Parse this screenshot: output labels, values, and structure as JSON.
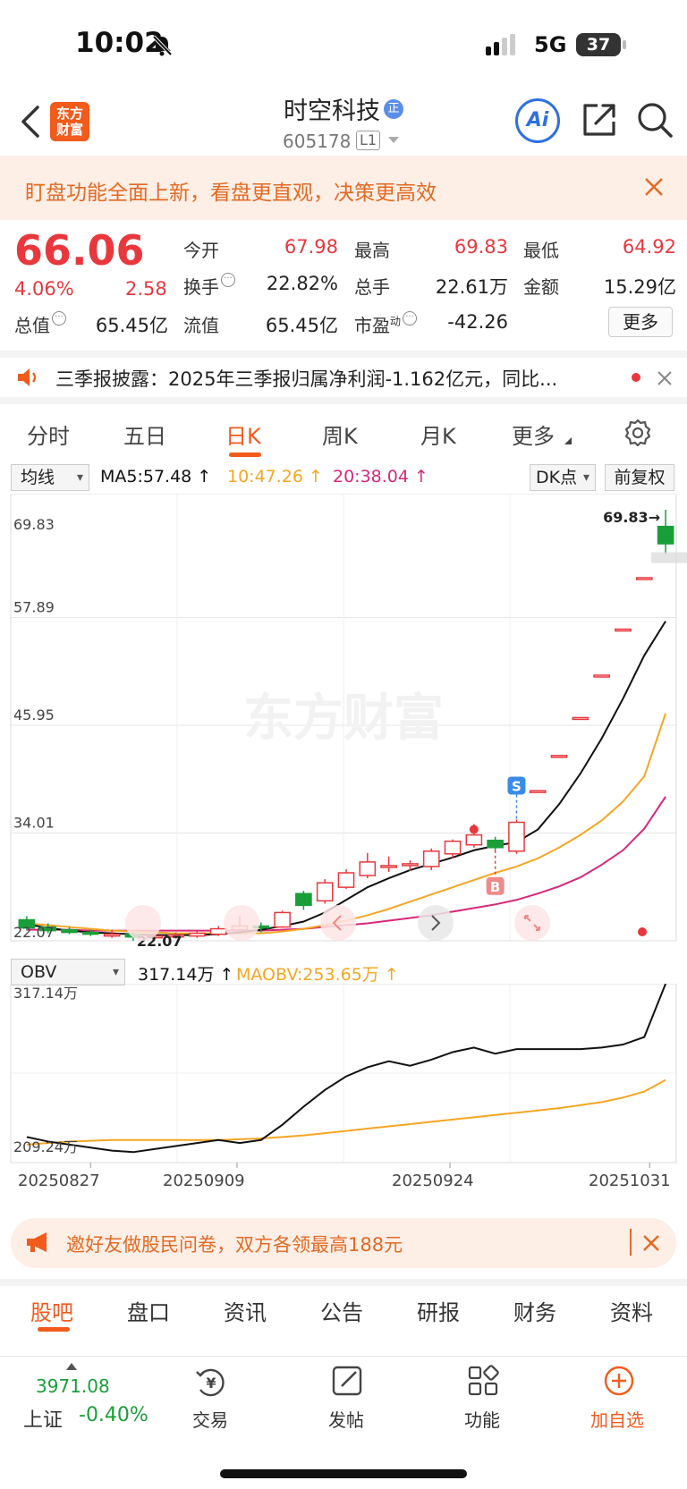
{
  "status_bar": {
    "time": "10:02",
    "network": "5G",
    "battery": "37"
  },
  "header": {
    "logo_line1": "东方",
    "logo_line2": "财富",
    "stock_name": "时空科技",
    "stock_badge": "正",
    "stock_code": "605178",
    "level": "L1",
    "ai_label": "Ai"
  },
  "banner": {
    "text": "盯盘功能全面上新，看盘更直观，决策更高效"
  },
  "quote": {
    "price": "66.06",
    "change_pct": "4.06%",
    "change": "2.58",
    "open_label": "今开",
    "open": "67.98",
    "high_label": "最高",
    "high": "69.83",
    "low_label": "最低",
    "low": "64.92",
    "turnover_label": "换手",
    "turnover": "22.82%",
    "volume_label": "总手",
    "volume": "22.61万",
    "amount_label": "金额",
    "amount": "15.29亿",
    "mcap_label": "总值",
    "mcap": "65.45亿",
    "float_label": "流值",
    "float": "65.45亿",
    "pe_label": "市盈",
    "pe_sup": "动",
    "pe": "-42.26",
    "more": "更多"
  },
  "ticker": {
    "text": "三季报披露：2025年三季报归属净利润-1.162亿元，同比..."
  },
  "period_tabs": [
    "分时",
    "五日",
    "日K",
    "周K",
    "月K",
    "更多"
  ],
  "indicators": {
    "main_select": "均线",
    "ma5": "MA5:57.48",
    "ma10": "10:47.26",
    "ma20": "20:38.04",
    "dk": "DK点",
    "fq": "前复权",
    "sub_select": "OBV",
    "obv": "317.14万",
    "maobv": "MAOBV:253.65万"
  },
  "chart_data": {
    "type": "candlestick",
    "y_ticks": [
      "69.83",
      "57.89",
      "45.95",
      "34.01",
      "22.07"
    ],
    "ylim": [
      22.07,
      69.83
    ],
    "high_marker": "69.83→",
    "low_marker": "22.07",
    "signal_labels": [
      "S",
      "B"
    ],
    "watermark": "东方财富",
    "candles": [
      {
        "o": 24.4,
        "c": 23.5,
        "h": 24.8,
        "l": 23.2
      },
      {
        "o": 23.6,
        "c": 23.2,
        "h": 24.0,
        "l": 22.9
      },
      {
        "o": 23.3,
        "c": 23.0,
        "h": 23.6,
        "l": 22.8
      },
      {
        "o": 23.0,
        "c": 22.9,
        "h": 23.3,
        "l": 22.6
      },
      {
        "o": 22.8,
        "c": 22.8,
        "h": 23.3,
        "l": 22.4
      },
      {
        "o": 22.8,
        "c": 22.5,
        "h": 23.0,
        "l": 22.07
      },
      {
        "o": 22.6,
        "c": 22.6,
        "h": 23.0,
        "l": 22.3
      },
      {
        "o": 22.6,
        "c": 22.7,
        "h": 23.0,
        "l": 22.3
      },
      {
        "o": 22.6,
        "c": 22.9,
        "h": 23.2,
        "l": 22.4
      },
      {
        "o": 22.8,
        "c": 23.4,
        "h": 23.7,
        "l": 22.6
      },
      {
        "o": 23.3,
        "c": 23.7,
        "h": 24.8,
        "l": 23.1
      },
      {
        "o": 23.7,
        "c": 23.6,
        "h": 24.1,
        "l": 23.0
      },
      {
        "o": 23.6,
        "c": 25.2,
        "h": 25.4,
        "l": 23.5
      },
      {
        "o": 27.3,
        "c": 26.0,
        "h": 27.6,
        "l": 25.5
      },
      {
        "o": 26.5,
        "c": 28.5,
        "h": 28.9,
        "l": 26.2
      },
      {
        "o": 28.0,
        "c": 29.6,
        "h": 30.0,
        "l": 27.8
      },
      {
        "o": 29.3,
        "c": 30.8,
        "h": 31.8,
        "l": 29.0
      },
      {
        "o": 30.2,
        "c": 30.4,
        "h": 31.4,
        "l": 29.7
      },
      {
        "o": 30.5,
        "c": 30.6,
        "h": 31.0,
        "l": 29.8
      },
      {
        "o": 30.3,
        "c": 32.0,
        "h": 32.3,
        "l": 29.9
      },
      {
        "o": 31.7,
        "c": 33.1,
        "h": 33.3,
        "l": 31.2
      },
      {
        "o": 32.7,
        "c": 33.8,
        "h": 35.0,
        "l": 32.4
      },
      {
        "o": 33.2,
        "c": 32.4,
        "h": 33.6,
        "l": 32.1
      },
      {
        "o": 32.0,
        "c": 35.2,
        "h": 35.5,
        "l": 31.7
      },
      {
        "o": 38.7,
        "c": 38.7,
        "h": 38.7,
        "l": 38.7
      },
      {
        "o": 42.6,
        "c": 42.6,
        "h": 42.6,
        "l": 42.6
      },
      {
        "o": 46.8,
        "c": 46.8,
        "h": 46.8,
        "l": 46.8
      },
      {
        "o": 51.5,
        "c": 51.5,
        "h": 51.5,
        "l": 51.5
      },
      {
        "o": 56.6,
        "c": 56.6,
        "h": 56.6,
        "l": 56.6
      },
      {
        "o": 62.3,
        "c": 62.3,
        "h": 62.3,
        "l": 62.3
      },
      {
        "o": 67.98,
        "c": 66.06,
        "h": 69.83,
        "l": 64.92
      }
    ],
    "ma5": [
      23.9,
      23.5,
      23.2,
      23.0,
      22.9,
      22.8,
      22.7,
      22.7,
      22.7,
      22.8,
      23.0,
      23.3,
      23.7,
      24.2,
      25.2,
      26.6,
      28.0,
      29.0,
      29.9,
      30.6,
      31.3,
      32.1,
      32.6,
      33.0,
      34.4,
      37.2,
      40.6,
      44.5,
      48.9,
      53.7,
      57.48
    ],
    "ma10": [
      24.0,
      23.8,
      23.6,
      23.4,
      23.2,
      23.1,
      23.0,
      22.9,
      22.9,
      22.9,
      22.9,
      22.9,
      23.1,
      23.4,
      23.8,
      24.3,
      24.9,
      25.6,
      26.4,
      27.2,
      28.0,
      28.8,
      29.6,
      30.3,
      31.2,
      32.4,
      33.8,
      35.4,
      37.5,
      40.3,
      47.26
    ],
    "ma20": [
      23.3,
      23.3,
      23.3,
      23.2,
      23.2,
      23.2,
      23.2,
      23.2,
      23.2,
      23.2,
      23.2,
      23.2,
      23.3,
      23.4,
      23.6,
      23.8,
      24.0,
      24.3,
      24.6,
      24.9,
      25.3,
      25.7,
      26.1,
      26.6,
      27.3,
      28.1,
      29.1,
      30.5,
      32.1,
      34.5,
      38.04
    ],
    "obv_ticks": [
      "317.14万",
      "209.24万"
    ],
    "obv_ylim": [
      205,
      317.14
    ],
    "obv": [
      216,
      213,
      211,
      209,
      207,
      206,
      208,
      210,
      212,
      214,
      212,
      214,
      224,
      236,
      247,
      256,
      262,
      266,
      263,
      267,
      272,
      275,
      271,
      274,
      274,
      274,
      274,
      275,
      277,
      282,
      317.14
    ],
    "maobv": [
      211,
      212,
      213,
      213.5,
      214,
      214,
      214,
      214,
      214,
      214,
      214.5,
      215,
      216,
      217,
      218.5,
      220,
      221.5,
      223,
      224.5,
      226,
      227.5,
      229,
      230.5,
      232,
      233.5,
      235,
      237,
      239,
      242,
      246,
      253.65
    ],
    "dates": [
      "20250827",
      "20250909",
      "20250924",
      "20251031"
    ]
  },
  "promo": {
    "text": "邀好友做股民问卷，双方各领最高188元"
  },
  "bottom_tabs": [
    "股吧",
    "盘口",
    "资讯",
    "公告",
    "研报",
    "财务",
    "资料"
  ],
  "dock": {
    "index_value": "3971.08",
    "index_name": "上证",
    "index_pct": "-0.40%",
    "trade": "交易",
    "post": "发帖",
    "func": "功能",
    "add_watch": "加自选"
  },
  "colors": {
    "up": "#e8383d",
    "down": "#1a9e3a",
    "accent": "#f25b1c",
    "ma5": "#111111",
    "ma10": "#f5a623",
    "ma20": "#d6287a"
  }
}
